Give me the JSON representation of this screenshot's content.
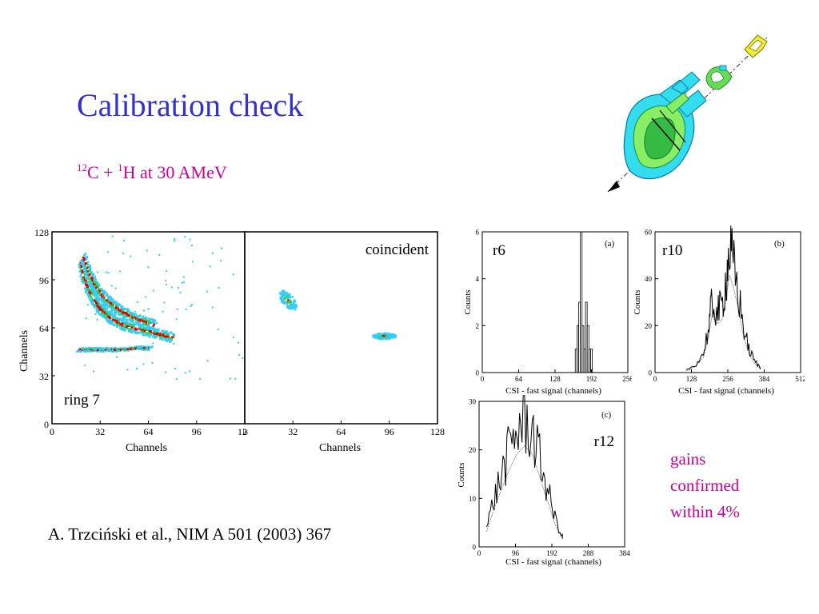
{
  "slide": {
    "title": "Calibration check",
    "subtitle": {
      "c_mass": "12",
      "c_symbol": "C + ",
      "h_mass": "1",
      "h_rest": "H at 30 AMeV"
    },
    "citation": "A. Trzciński et al., NIM A 501 (2003) 367",
    "conclusion": [
      "gains",
      "confirmed",
      "within 4%"
    ]
  },
  "colors": {
    "title": "#3333cc",
    "accent": "#cc0099",
    "map_low": "#33ccff",
    "map_mid": "#33cc66",
    "map_high": "#dd0000"
  },
  "chart_data": [
    {
      "type": "heatmap",
      "panel_label": "ring 7",
      "xlabel": "Channels",
      "ylabel": "Channels",
      "xlim": [
        0,
        128
      ],
      "ylim": [
        0,
        128
      ],
      "xticks": [
        0,
        32,
        64,
        96,
        128
      ],
      "yticks": [
        0,
        32,
        64,
        96,
        128
      ],
      "bands": [
        {
          "name": "",
          "x": [
            18,
            22,
            26,
            30,
            35,
            40,
            48,
            56,
            64,
            72,
            80
          ],
          "y": [
            108,
            94,
            86,
            79,
            74,
            70,
            66,
            64,
            62,
            60,
            58
          ]
        },
        {
          "name": "",
          "x": [
            20,
            24,
            28,
            32,
            38,
            45,
            52,
            60,
            68
          ],
          "y": [
            112,
            101,
            93,
            87,
            81,
            76,
            72,
            69,
            66
          ]
        },
        {
          "name": "",
          "x": [
            17,
            25,
            35,
            45,
            55,
            65
          ],
          "y": [
            50,
            50,
            50,
            50,
            51,
            51
          ]
        }
      ]
    },
    {
      "type": "heatmap",
      "panel_label": "coincident",
      "xlabel": "Channels",
      "ylabel": "",
      "xlim": [
        0,
        128
      ],
      "ylim": [
        0,
        128
      ],
      "xticks": [
        0,
        32,
        64,
        96,
        128
      ],
      "clusters": [
        {
          "x": 28,
          "y": 83,
          "spread_x": 6,
          "spread_y": 5
        },
        {
          "x": 92,
          "y": 59,
          "spread_x": 8,
          "spread_y": 2
        }
      ]
    },
    {
      "type": "bar",
      "panel_tag": "(a)",
      "panel_label": "r6",
      "xlabel": "CSI - fast signal (channels)",
      "ylabel": "Counts",
      "xlim": [
        0,
        256
      ],
      "ylim": [
        0,
        6
      ],
      "xticks": [
        0,
        64,
        128,
        192,
        256
      ],
      "yticks": [
        0,
        2,
        4,
        6
      ],
      "x": [
        165,
        168,
        171,
        174,
        177,
        180,
        183,
        186,
        189,
        192
      ],
      "values": [
        1,
        2,
        3,
        6,
        2,
        1,
        3,
        2,
        1,
        1
      ]
    },
    {
      "type": "line",
      "panel_tag": "(b)",
      "panel_label": "r10",
      "xlabel": "CSI - fast signal (channels)",
      "ylabel": "Counts",
      "xlim": [
        0,
        512
      ],
      "ylim": [
        0,
        60
      ],
      "xticks": [
        0,
        128,
        256,
        384,
        512
      ],
      "yticks": [
        0,
        20,
        40,
        60
      ],
      "x": [
        110,
        140,
        170,
        190,
        200,
        220,
        235,
        250,
        262,
        275,
        290,
        310,
        330,
        350,
        370
      ],
      "values": [
        1,
        3,
        8,
        20,
        30,
        26,
        28,
        40,
        52,
        46,
        36,
        20,
        10,
        5,
        2
      ]
    },
    {
      "type": "line",
      "panel_tag": "(c)",
      "panel_label": "r12",
      "xlabel": "CSI - fast signal (channels)",
      "ylabel": "Counts",
      "xlim": [
        0,
        384
      ],
      "ylim": [
        0,
        30
      ],
      "xticks": [
        0,
        96,
        192,
        288,
        384
      ],
      "yticks": [
        0,
        10,
        20,
        30
      ],
      "x": [
        20,
        40,
        60,
        80,
        100,
        120,
        140,
        160,
        180,
        200,
        220
      ],
      "values": [
        4,
        10,
        15,
        20,
        24,
        26,
        24,
        18,
        12,
        6,
        2
      ]
    }
  ]
}
